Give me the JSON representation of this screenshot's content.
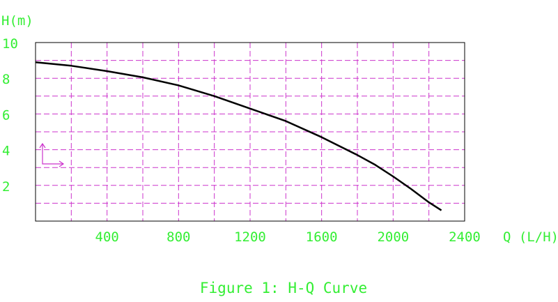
{
  "chart_data": {
    "type": "line",
    "title": "",
    "caption": "Figure 1: H-Q Curve",
    "xlabel": "Q (L/H)",
    "ylabel": "H(m)",
    "xlim": [
      0,
      2400
    ],
    "ylim": [
      0,
      10
    ],
    "x_ticks": [
      400,
      800,
      1200,
      1600,
      2000,
      2400
    ],
    "x_tick_labels": [
      "400",
      "800",
      "1200",
      "1600",
      "2000",
      "2400"
    ],
    "y_ticks": [
      2,
      4,
      6,
      8,
      10
    ],
    "y_tick_labels": [
      "2",
      "4",
      "6",
      "8",
      "10"
    ],
    "x_grid": [
      200,
      400,
      600,
      800,
      1000,
      1200,
      1400,
      1600,
      1800,
      2000,
      2200
    ],
    "y_grid": [
      1,
      2,
      3,
      4,
      5,
      6,
      7,
      8,
      9
    ],
    "grid": true,
    "grid_style": "dashed",
    "legend": "none",
    "series": [
      {
        "x": [
          0,
          200,
          400,
          600,
          800,
          1000,
          1200,
          1400,
          1600,
          1800,
          1900,
          2000,
          2100,
          2200,
          2270
        ],
        "y": [
          8.9,
          8.7,
          8.4,
          8.05,
          7.6,
          7.0,
          6.3,
          5.6,
          4.7,
          3.7,
          3.15,
          2.5,
          1.8,
          1.05,
          0.6
        ]
      }
    ],
    "colors": {
      "text": "#33ee33",
      "grid": "#cc33cc",
      "frame": "#000000",
      "curve": "#000000"
    }
  }
}
